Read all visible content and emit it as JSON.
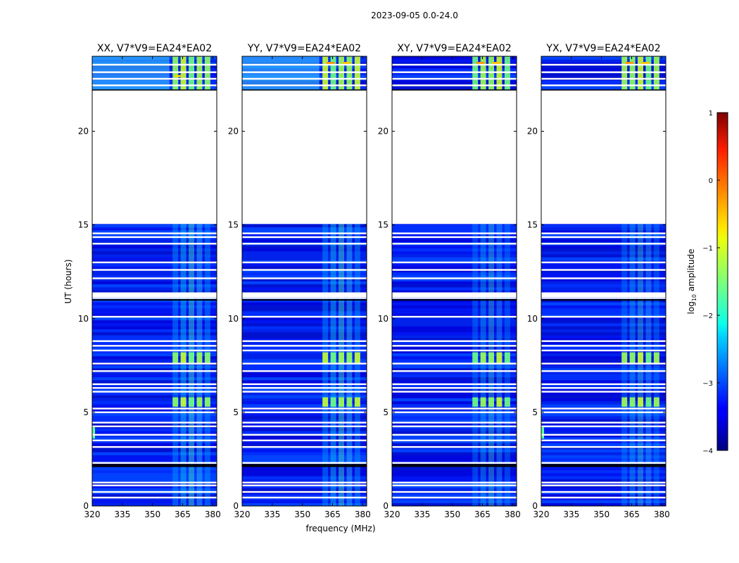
{
  "chart_data": {
    "type": "heatmap",
    "suptitle": "2023-09-05 0.0-24.0",
    "xlabel": "frequency (MHz)",
    "ylabel": "UT (hours)",
    "xlim": [
      320,
      382
    ],
    "ylim": [
      0,
      24
    ],
    "x_ticks": [
      "320",
      "335",
      "350",
      "365",
      "380"
    ],
    "x_tick_values": [
      320,
      335,
      350,
      365,
      380
    ],
    "y_ticks": [
      "0",
      "5",
      "10",
      "15",
      "20"
    ],
    "y_tick_values": [
      0,
      5,
      10,
      15,
      20
    ],
    "panels": [
      {
        "title": "XX, V7*V9=EA24*EA02"
      },
      {
        "title": "YY, V7*V9=EA24*EA02"
      },
      {
        "title": "XY, V7*V9=EA24*EA02"
      },
      {
        "title": "YX, V7*V9=EA24*EA02"
      }
    ],
    "data_gaps_hours": [
      [
        15.05,
        22.2
      ]
    ],
    "rfi_band_mhz": [
      360,
      380
    ],
    "colorbar": {
      "label": "log",
      "label_sub": "10",
      "label_suffix": " amplitude",
      "range": [
        -4,
        1
      ],
      "ticks": [
        "1",
        "0",
        "−1",
        "−2",
        "−3",
        "−4"
      ],
      "tick_values": [
        1,
        0,
        -1,
        -2,
        -3,
        -4
      ],
      "colormap": "jet"
    }
  }
}
